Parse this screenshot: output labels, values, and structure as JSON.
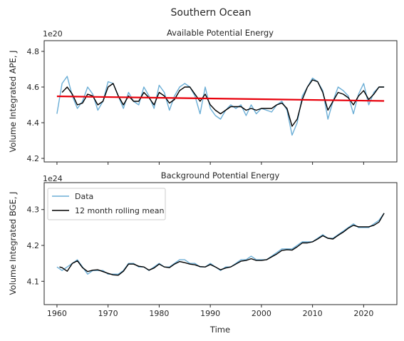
{
  "figure": {
    "suptitle": "Southern Ocean",
    "xlabel": "Time"
  },
  "colors": {
    "data": "#6baed6",
    "rolling": "#000000",
    "trend": "#e8000b",
    "axes": "#262626"
  },
  "legend": {
    "data_label": "Data",
    "rolling_label": "12 month rolling mean",
    "placement": "upper-left"
  },
  "chart_data": [
    {
      "type": "line",
      "title": "Available Potential Energy",
      "ylabel": "Volume Integrated APE, J",
      "scale_label": "1e20",
      "xlim": [
        1957.5,
        2026.5
      ],
      "ylim": [
        4.18,
        4.86
      ],
      "xticks": [
        1960,
        1970,
        1980,
        1990,
        2000,
        2010,
        2020
      ],
      "xtick_labels_visible": false,
      "yticks": [
        4.2,
        4.4,
        4.6,
        4.8
      ],
      "ytick_labels": [
        "4.2",
        "4.4",
        "4.6",
        "4.8"
      ],
      "series": [
        {
          "x": [
            1960,
            1961,
            1962,
            1963,
            1964,
            1965,
            1966,
            1967,
            1968,
            1969,
            1970,
            1971,
            1972,
            1973,
            1974,
            1975,
            1976,
            1977,
            1978,
            1979,
            1980,
            1981,
            1982,
            1983,
            1984,
            1985,
            1986,
            1987,
            1988,
            1989,
            1990,
            1991,
            1992,
            1993,
            1994,
            1995,
            1996,
            1997,
            1998,
            1999,
            2000,
            2001,
            2002,
            2003,
            2004,
            2005,
            2006,
            2007,
            2008,
            2009,
            2010,
            2011,
            2012,
            2013,
            2014,
            2015,
            2016,
            2017,
            2018,
            2019,
            2020,
            2021,
            2022,
            2023,
            2024
          ],
          "y": [
            4.45,
            4.62,
            4.66,
            4.55,
            4.48,
            4.52,
            4.6,
            4.56,
            4.47,
            4.52,
            4.63,
            4.62,
            4.55,
            4.48,
            4.57,
            4.52,
            4.5,
            4.6,
            4.55,
            4.48,
            4.61,
            4.57,
            4.47,
            4.55,
            4.6,
            4.62,
            4.6,
            4.55,
            4.45,
            4.6,
            4.48,
            4.44,
            4.42,
            4.47,
            4.5,
            4.48,
            4.5,
            4.44,
            4.5,
            4.45,
            4.48,
            4.47,
            4.46,
            4.5,
            4.52,
            4.47,
            4.33,
            4.4,
            4.55,
            4.6,
            4.65,
            4.63,
            4.58,
            4.42,
            4.52,
            4.6,
            4.58,
            4.55,
            4.45,
            4.56,
            4.62,
            4.5,
            4.57,
            4.6,
            4.6
          ]
        },
        {
          "x": [
            1961,
            1962,
            1963,
            1964,
            1965,
            1966,
            1967,
            1968,
            1969,
            1970,
            1971,
            1972,
            1973,
            1974,
            1975,
            1976,
            1977,
            1978,
            1979,
            1980,
            1981,
            1982,
            1983,
            1984,
            1985,
            1986,
            1987,
            1988,
            1989,
            1990,
            1991,
            1992,
            1993,
            1994,
            1995,
            1996,
            1997,
            1998,
            1999,
            2000,
            2001,
            2002,
            2003,
            2004,
            2005,
            2006,
            2007,
            2008,
            2009,
            2010,
            2011,
            2012,
            2013,
            2014,
            2015,
            2016,
            2017,
            2018,
            2019,
            2020,
            2021,
            2022,
            2023,
            2024
          ],
          "y": [
            4.57,
            4.6,
            4.56,
            4.5,
            4.51,
            4.56,
            4.55,
            4.5,
            4.52,
            4.6,
            4.62,
            4.55,
            4.5,
            4.55,
            4.52,
            4.52,
            4.57,
            4.54,
            4.5,
            4.57,
            4.55,
            4.51,
            4.53,
            4.58,
            4.6,
            4.6,
            4.56,
            4.52,
            4.56,
            4.5,
            4.47,
            4.45,
            4.47,
            4.49,
            4.49,
            4.49,
            4.47,
            4.48,
            4.47,
            4.48,
            4.48,
            4.48,
            4.5,
            4.51,
            4.48,
            4.38,
            4.42,
            4.53,
            4.6,
            4.64,
            4.63,
            4.57,
            4.47,
            4.52,
            4.57,
            4.56,
            4.54,
            4.5,
            4.55,
            4.58,
            4.53,
            4.56,
            4.6,
            4.6
          ]
        },
        {
          "x": [
            1960,
            2024
          ],
          "y": [
            4.548,
            4.522
          ]
        }
      ]
    },
    {
      "type": "line",
      "title": "Background Potential Energy",
      "ylabel": "Volume Integrated BGE, J",
      "scale_label": "1e24",
      "xlim": [
        1957.5,
        2026.5
      ],
      "ylim": [
        4.035,
        4.375
      ],
      "xticks": [
        1960,
        1970,
        1980,
        1990,
        2000,
        2010,
        2020
      ],
      "xtick_labels": [
        "1960",
        "1970",
        "1980",
        "1990",
        "2000",
        "2010",
        "2020"
      ],
      "yticks": [
        4.1,
        4.2,
        4.3
      ],
      "ytick_labels": [
        "4.1",
        "4.2",
        "4.3"
      ],
      "series": [
        {
          "x": [
            1960,
            1961,
            1962,
            1963,
            1964,
            1965,
            1966,
            1967,
            1968,
            1969,
            1970,
            1971,
            1972,
            1973,
            1974,
            1975,
            1976,
            1977,
            1978,
            1979,
            1980,
            1981,
            1982,
            1983,
            1984,
            1985,
            1986,
            1987,
            1988,
            1989,
            1990,
            1991,
            1992,
            1993,
            1994,
            1995,
            1996,
            1997,
            1998,
            1999,
            2000,
            2001,
            2002,
            2003,
            2004,
            2005,
            2006,
            2007,
            2008,
            2009,
            2010,
            2011,
            2012,
            2013,
            2014,
            2015,
            2016,
            2017,
            2018,
            2019,
            2020,
            2021,
            2022,
            2023,
            2024
          ],
          "y": [
            4.14,
            4.13,
            4.14,
            4.15,
            4.16,
            4.14,
            4.12,
            4.13,
            4.13,
            4.13,
            4.12,
            4.12,
            4.12,
            4.13,
            4.15,
            4.15,
            4.14,
            4.14,
            4.13,
            4.14,
            4.15,
            4.14,
            4.14,
            4.15,
            4.16,
            4.16,
            4.15,
            4.15,
            4.14,
            4.14,
            4.15,
            4.14,
            4.13,
            4.14,
            4.14,
            4.15,
            4.16,
            4.16,
            4.17,
            4.16,
            4.16,
            4.16,
            4.17,
            4.18,
            4.19,
            4.19,
            4.19,
            4.2,
            4.21,
            4.21,
            4.21,
            4.22,
            4.23,
            4.22,
            4.22,
            4.23,
            4.24,
            4.25,
            4.26,
            4.25,
            4.25,
            4.25,
            4.26,
            4.27,
            4.29
          ]
        },
        {
          "x": [
            1960.5,
            1961,
            1962,
            1963,
            1964,
            1965,
            1966,
            1967,
            1968,
            1969,
            1970,
            1971,
            1972,
            1973,
            1974,
            1975,
            1976,
            1977,
            1978,
            1979,
            1980,
            1981,
            1982,
            1983,
            1984,
            1985,
            1986,
            1987,
            1988,
            1989,
            1990,
            1991,
            1992,
            1993,
            1994,
            1995,
            1996,
            1997,
            1998,
            1999,
            2000,
            2001,
            2002,
            2003,
            2004,
            2005,
            2006,
            2007,
            2008,
            2009,
            2010,
            2011,
            2012,
            2013,
            2014,
            2015,
            2016,
            2017,
            2018,
            2019,
            2020,
            2021,
            2022,
            2023,
            2024
          ],
          "y": [
            4.14,
            4.138,
            4.128,
            4.15,
            4.157,
            4.138,
            4.127,
            4.131,
            4.132,
            4.127,
            4.122,
            4.118,
            4.117,
            4.128,
            4.148,
            4.148,
            4.142,
            4.14,
            4.131,
            4.137,
            4.148,
            4.14,
            4.138,
            4.148,
            4.155,
            4.152,
            4.148,
            4.146,
            4.141,
            4.14,
            4.147,
            4.14,
            4.132,
            4.137,
            4.14,
            4.148,
            4.156,
            4.158,
            4.163,
            4.158,
            4.158,
            4.16,
            4.168,
            4.176,
            4.186,
            4.188,
            4.187,
            4.196,
            4.207,
            4.207,
            4.21,
            4.218,
            4.227,
            4.22,
            4.218,
            4.228,
            4.237,
            4.248,
            4.256,
            4.252,
            4.252,
            4.252,
            4.256,
            4.265,
            4.29
          ]
        }
      ]
    }
  ]
}
